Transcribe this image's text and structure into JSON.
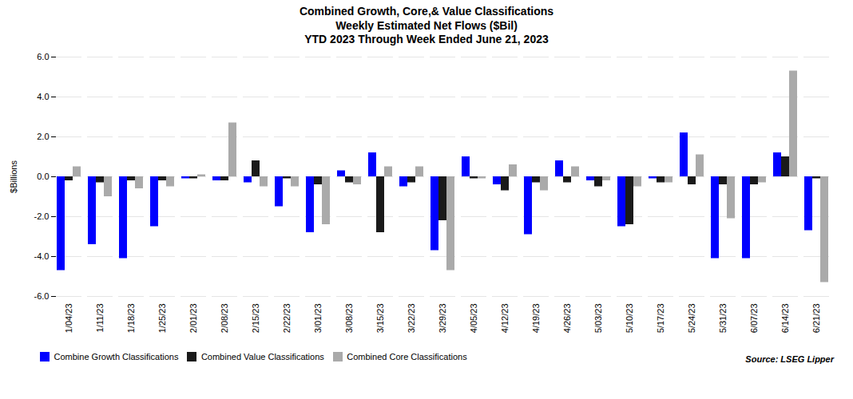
{
  "chart_data": {
    "type": "bar",
    "title": "Combined Growth, Core,& Value Classifications\nWeekly Estimated Net Flows ($Bil)\nYTD 2023 Through Week Ended June 21, 2023",
    "ylabel": "$Billions",
    "annotations": [
      "Source: LSEG Lipper"
    ],
    "categories": [
      "1/04/23",
      "1/11/23",
      "1/18/23",
      "1/25/23",
      "2/01/23",
      "2/08/23",
      "2/15/23",
      "2/22/23",
      "3/01/23",
      "3/08/23",
      "3/15/23",
      "3/22/23",
      "3/29/23",
      "4/05/23",
      "4/12/23",
      "4/19/23",
      "4/26/23",
      "5/03/23",
      "5/10/23",
      "5/17/23",
      "5/24/23",
      "5/31/23",
      "6/07/23",
      "6/14/23",
      "6/21/23"
    ],
    "series": [
      {
        "name": "Combine Growth Classifications",
        "color": "#0000FF",
        "values": [
          -4.7,
          -3.4,
          -4.1,
          -2.5,
          -0.1,
          -0.2,
          -0.3,
          -1.5,
          -2.8,
          0.3,
          1.2,
          -0.5,
          -3.7,
          1.0,
          -0.4,
          -2.9,
          0.8,
          -0.2,
          -2.5,
          -0.1,
          2.2,
          -4.1,
          -4.1,
          1.2,
          -2.7
        ]
      },
      {
        "name": "Combined Value Classifications",
        "color": "#1a1a1a",
        "values": [
          -0.2,
          -0.3,
          -0.2,
          -0.2,
          -0.1,
          -0.2,
          0.8,
          -0.1,
          -0.4,
          -0.3,
          -2.8,
          -0.3,
          -2.2,
          -0.1,
          -0.7,
          -0.3,
          -0.3,
          -0.5,
          -2.4,
          -0.3,
          -0.4,
          -0.4,
          -0.4,
          1.0,
          -0.1
        ]
      },
      {
        "name": "Combined Core Classifications",
        "color": "#aaaaaa",
        "values": [
          0.5,
          -1.0,
          -0.6,
          -0.5,
          0.1,
          2.7,
          -0.5,
          -0.5,
          -2.4,
          -0.4,
          0.5,
          0.5,
          -4.7,
          -0.1,
          0.6,
          -0.7,
          0.5,
          -0.2,
          -0.5,
          -0.3,
          1.1,
          -2.1,
          -0.3,
          5.3,
          -5.3
        ]
      }
    ],
    "ylim": [
      -6.0,
      6.0
    ],
    "yticks": [
      {
        "value": -6.0,
        "label": "-6.0"
      },
      {
        "value": -4.0,
        "label": "-4.0"
      },
      {
        "value": -2.0,
        "label": "-2.0"
      },
      {
        "value": 0.0,
        "label": "0.0"
      },
      {
        "value": 2.0,
        "label": "2.0"
      },
      {
        "value": 4.0,
        "label": "4.0"
      },
      {
        "value": 6.0,
        "label": "6.0"
      }
    ],
    "grid": true,
    "legend": "bottom"
  }
}
